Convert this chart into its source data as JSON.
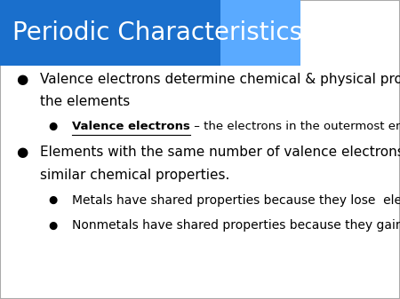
{
  "title": "Periodic Characteristics",
  "title_color": "#FFFFFF",
  "title_bg_color_left": "#1a6fcc",
  "title_bg_color_right": "#5aaaff",
  "bg_color": "#FFFFFF",
  "border_color": "#aaaaaa",
  "bullet_color": "#000000",
  "bullet1_text_line1": "Valence electrons determine chemical & physical properties of",
  "bullet1_text_line2": "the elements",
  "sub_bullet1_bold": "Valence electrons",
  "sub_bullet1_rest": " – the electrons in the outermost energy level",
  "bullet2_text_line1": "Elements with the same number of valence electrons will have",
  "bullet2_text_line2": "similar chemical properties.",
  "sub_bullet2": "Metals have shared properties because they lose  electrons",
  "sub_bullet3": "Nonmetals have shared properties because they gain electrons",
  "title_fontsize": 20,
  "body_fontsize": 11,
  "sub_body_fontsize": 9.5,
  "figsize": [
    4.5,
    3.37
  ],
  "dpi": 100
}
